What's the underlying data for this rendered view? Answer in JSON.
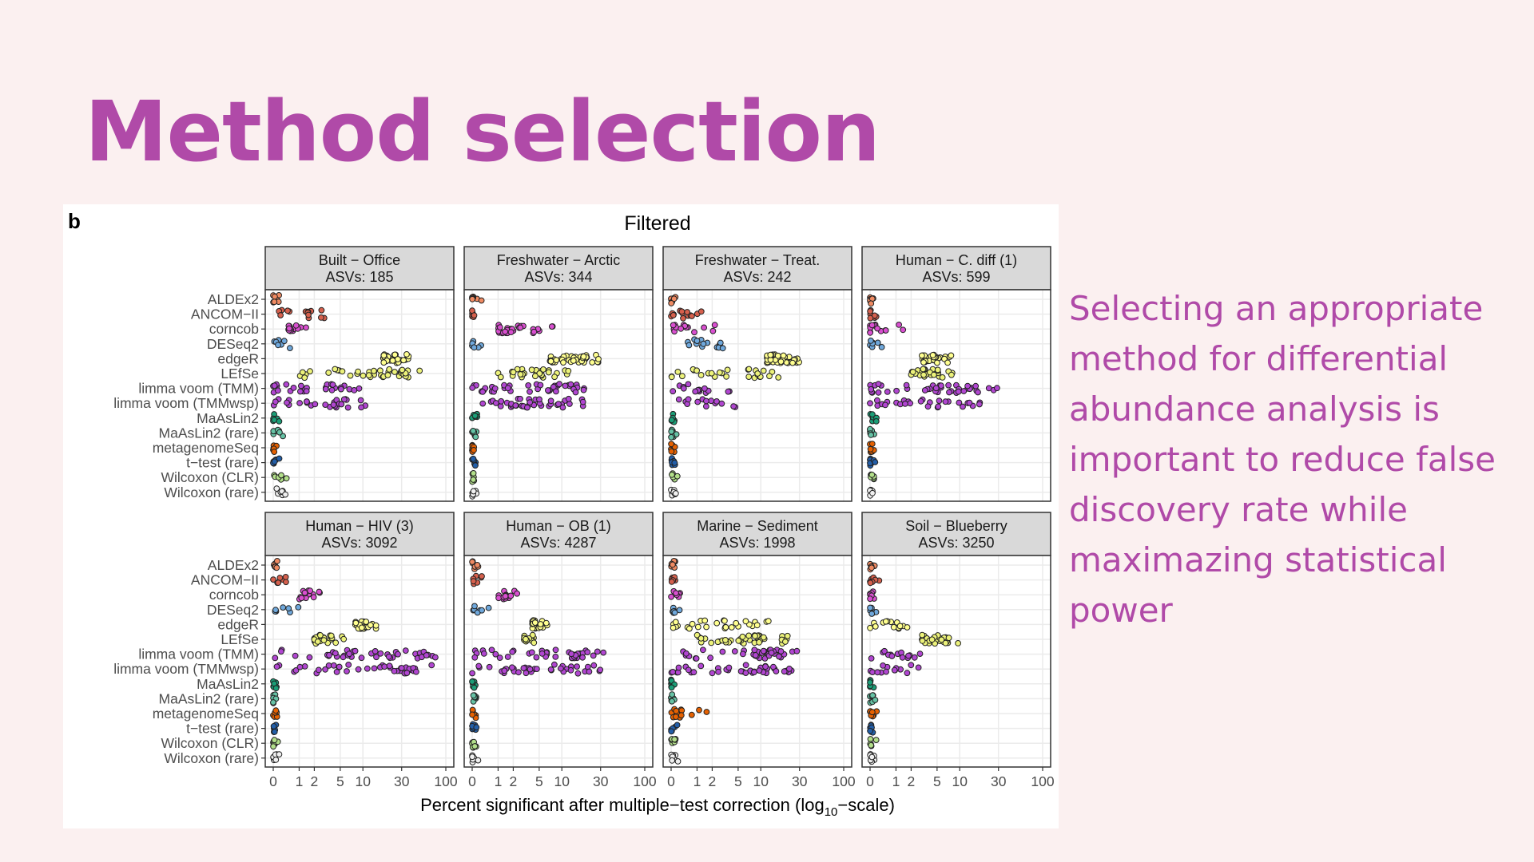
{
  "slide": {
    "title": "Method selection",
    "body_text": "Selecting an appropriate\nmethod for differential\nabundance analysis is\nimportant to reduce false\ndiscovery rate while\nmaximazing statistical\npower"
  },
  "colors": {
    "title": "#b04aa8",
    "background": "#fbf0f0",
    "strip": "#d9d9d9",
    "grid": "#ebebeb"
  },
  "chart_data": {
    "type": "scatter",
    "panel_letter": "b",
    "title": "Filtered",
    "xlabel_parts": [
      "Percent significant after multiple−test correction (log",
      "10",
      "−scale)"
    ],
    "x_scale": "log10(x+1)",
    "x_ticks": [
      0,
      1,
      2,
      5,
      10,
      30,
      100
    ],
    "x_tick_labels": [
      "0",
      "1",
      "2",
      "5",
      "10",
      "30",
      "100"
    ],
    "xlim": [
      0,
      100
    ],
    "grid": true,
    "methods": [
      "ALDEx2",
      "ANCOM−II",
      "corncob",
      "DESeq2",
      "edgeR",
      "LEfSe",
      "limma voom (TMM)",
      "limma voom (TMMwsp)",
      "MaAsLin2",
      "MaAsLin2 (rare)",
      "metagenomeSeq",
      "t−test (rare)",
      "Wilcoxon (CLR)",
      "Wilcoxon (rare)"
    ],
    "method_colors": [
      "#ef8a62",
      "#d6604d",
      "#d94fd0",
      "#6fa8dc",
      "#ffff8f",
      "#ecf27a",
      "#b146d1",
      "#b146d1",
      "#1b9e77",
      "#66c2a5",
      "#e66101",
      "#225ea8",
      "#b2df8a",
      "#f0f0f0"
    ],
    "panels": [
      {
        "dataset": "Built − Office",
        "asvs": "ASVs: 185",
        "rows": [
          [
            0,
            0.3
          ],
          [
            0,
            3
          ],
          [
            0.5,
            1.5
          ],
          [
            0,
            0.7
          ],
          [
            18,
            40
          ],
          [
            1,
            60
          ],
          [
            0,
            12
          ],
          [
            0,
            12
          ],
          [
            0,
            0.2
          ],
          [
            0,
            0.5
          ],
          [
            0,
            0.3
          ],
          [
            0,
            0.2
          ],
          [
            0,
            0.5
          ],
          [
            0,
            0.5
          ]
        ]
      },
      {
        "dataset": "Freshwater − Arctic",
        "asvs": "ASVs: 344",
        "rows": [
          [
            0,
            0.3
          ],
          [
            0,
            0.3
          ],
          [
            1,
            8
          ],
          [
            0,
            0.5
          ],
          [
            7,
            30
          ],
          [
            1,
            20
          ],
          [
            0,
            22
          ],
          [
            0,
            22
          ],
          [
            0,
            0.3
          ],
          [
            0,
            0.2
          ],
          [
            0,
            0.2
          ],
          [
            0,
            0.2
          ],
          [
            0,
            0.2
          ],
          [
            0,
            0.2
          ]
        ]
      },
      {
        "dataset": "Freshwater − Treat.",
        "asvs": "ASVs: 242",
        "rows": [
          [
            0,
            0.3
          ],
          [
            0,
            1.5
          ],
          [
            0,
            2.5
          ],
          [
            0,
            5
          ],
          [
            12,
            30
          ],
          [
            0,
            20
          ],
          [
            0,
            5
          ],
          [
            0,
            5
          ],
          [
            0,
            0.2
          ],
          [
            0,
            0.3
          ],
          [
            0,
            0.2
          ],
          [
            0,
            0.2
          ],
          [
            0,
            0.2
          ],
          [
            0,
            0.2
          ]
        ]
      },
      {
        "dataset": "Human − C. diff (1)",
        "asvs": "ASVs: 599",
        "rows": [
          [
            0,
            0.3
          ],
          [
            0,
            0.3
          ],
          [
            0,
            1.5
          ],
          [
            0,
            0.7
          ],
          [
            3,
            8
          ],
          [
            2,
            8
          ],
          [
            0,
            30
          ],
          [
            0,
            20
          ],
          [
            0,
            0.2
          ],
          [
            0,
            0.2
          ],
          [
            0,
            0.2
          ],
          [
            0,
            0.2
          ],
          [
            0,
            0.2
          ],
          [
            0,
            0.2
          ]
        ]
      },
      {
        "dataset": "Human − HIV (3)",
        "asvs": "ASVs: 3092",
        "rows": [
          [
            0,
            0.3
          ],
          [
            0,
            0.5
          ],
          [
            1,
            3
          ],
          [
            0,
            1
          ],
          [
            8,
            15
          ],
          [
            2,
            6
          ],
          [
            0,
            80
          ],
          [
            0,
            90
          ],
          [
            0,
            0.2
          ],
          [
            0,
            0.2
          ],
          [
            0,
            0.2
          ],
          [
            0,
            0.2
          ],
          [
            0,
            0.2
          ],
          [
            0,
            0.2
          ]
        ]
      },
      {
        "dataset": "Human − OB (1)",
        "asvs": "ASVs: 4287",
        "rows": [
          [
            0,
            0.3
          ],
          [
            0,
            0.5
          ],
          [
            1,
            2.5
          ],
          [
            0,
            0.7
          ],
          [
            4,
            7
          ],
          [
            3,
            5
          ],
          [
            0,
            35
          ],
          [
            0,
            30
          ],
          [
            0,
            0.2
          ],
          [
            0,
            0.2
          ],
          [
            0,
            0.2
          ],
          [
            0,
            0.2
          ],
          [
            0,
            0.2
          ],
          [
            0,
            0.2
          ]
        ]
      },
      {
        "dataset": "Marine − Sediment",
        "asvs": "ASVs: 1998",
        "rows": [
          [
            0,
            0.3
          ],
          [
            0,
            0.3
          ],
          [
            0,
            0.5
          ],
          [
            0,
            0.3
          ],
          [
            0,
            15
          ],
          [
            1,
            25
          ],
          [
            0,
            30
          ],
          [
            0,
            25
          ],
          [
            0,
            0.2
          ],
          [
            0,
            0.2
          ],
          [
            0,
            3.5
          ],
          [
            0,
            0.2
          ],
          [
            0,
            0.2
          ],
          [
            0,
            0.2
          ]
        ]
      },
      {
        "dataset": "Soil − Blueberry",
        "asvs": "ASVs: 3250",
        "rows": [
          [
            0,
            0.3
          ],
          [
            0,
            0.5
          ],
          [
            0,
            0.3
          ],
          [
            0,
            0.3
          ],
          [
            0,
            3
          ],
          [
            3,
            10
          ],
          [
            0,
            4
          ],
          [
            0,
            4
          ],
          [
            0,
            0.2
          ],
          [
            0,
            0.2
          ],
          [
            0,
            0.2
          ],
          [
            0,
            0.2
          ],
          [
            0,
            0.2
          ],
          [
            0,
            0.2
          ]
        ]
      }
    ]
  }
}
